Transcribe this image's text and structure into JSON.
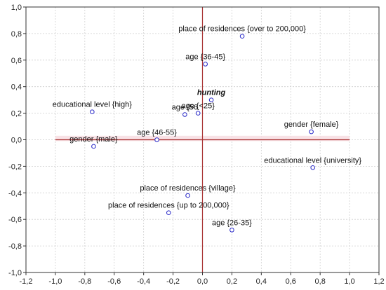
{
  "chart_data": {
    "type": "scatter",
    "title": "",
    "xlabel": "",
    "ylabel": "",
    "xlim": [
      -1.2,
      1.2
    ],
    "ylim": [
      -1.0,
      1.0
    ],
    "x_ticks": [
      "-1,2",
      "-1,0",
      "-0,8",
      "-0,6",
      "-0,4",
      "-0,2",
      "0,0",
      "0,2",
      "0,4",
      "0,6",
      "0,8",
      "1,0",
      "1,2"
    ],
    "y_ticks": [
      "1,0",
      "0,8",
      "0,6",
      "0,4",
      "0,2",
      "0,0",
      "-0,2",
      "-0,4",
      "-0,6",
      "-0,8",
      "-1,0"
    ],
    "grid": true,
    "reference_lines": {
      "x": 0,
      "y": 0,
      "color": "#a83232"
    },
    "point_color": "#2a2ac8",
    "points": [
      {
        "label": "place of residences {over to 200,000}",
        "x": 0.27,
        "y": 0.78
      },
      {
        "label": "age {36-45}",
        "x": 0.02,
        "y": 0.57
      },
      {
        "label": "hunting",
        "x": 0.06,
        "y": 0.3,
        "emphasis": true
      },
      {
        "label": "educational level {high}",
        "x": -0.75,
        "y": 0.21
      },
      {
        "label": "age {56",
        "x": -0.12,
        "y": 0.19
      },
      {
        "label": "age {<25}",
        "x": -0.03,
        "y": 0.2
      },
      {
        "label": "gender {female}",
        "x": 0.74,
        "y": 0.06
      },
      {
        "label": "age {46-55}",
        "x": -0.31,
        "y": 0.0
      },
      {
        "label": "gender {male}",
        "x": -0.74,
        "y": -0.05
      },
      {
        "label": "educational level {university}",
        "x": 0.75,
        "y": -0.21
      },
      {
        "label": "place of residences {village}",
        "x": -0.1,
        "y": -0.42
      },
      {
        "label": "place of residences {up to 200,000}",
        "x": -0.23,
        "y": -0.55
      },
      {
        "label": "age {26-35}",
        "x": 0.2,
        "y": -0.68
      }
    ]
  }
}
